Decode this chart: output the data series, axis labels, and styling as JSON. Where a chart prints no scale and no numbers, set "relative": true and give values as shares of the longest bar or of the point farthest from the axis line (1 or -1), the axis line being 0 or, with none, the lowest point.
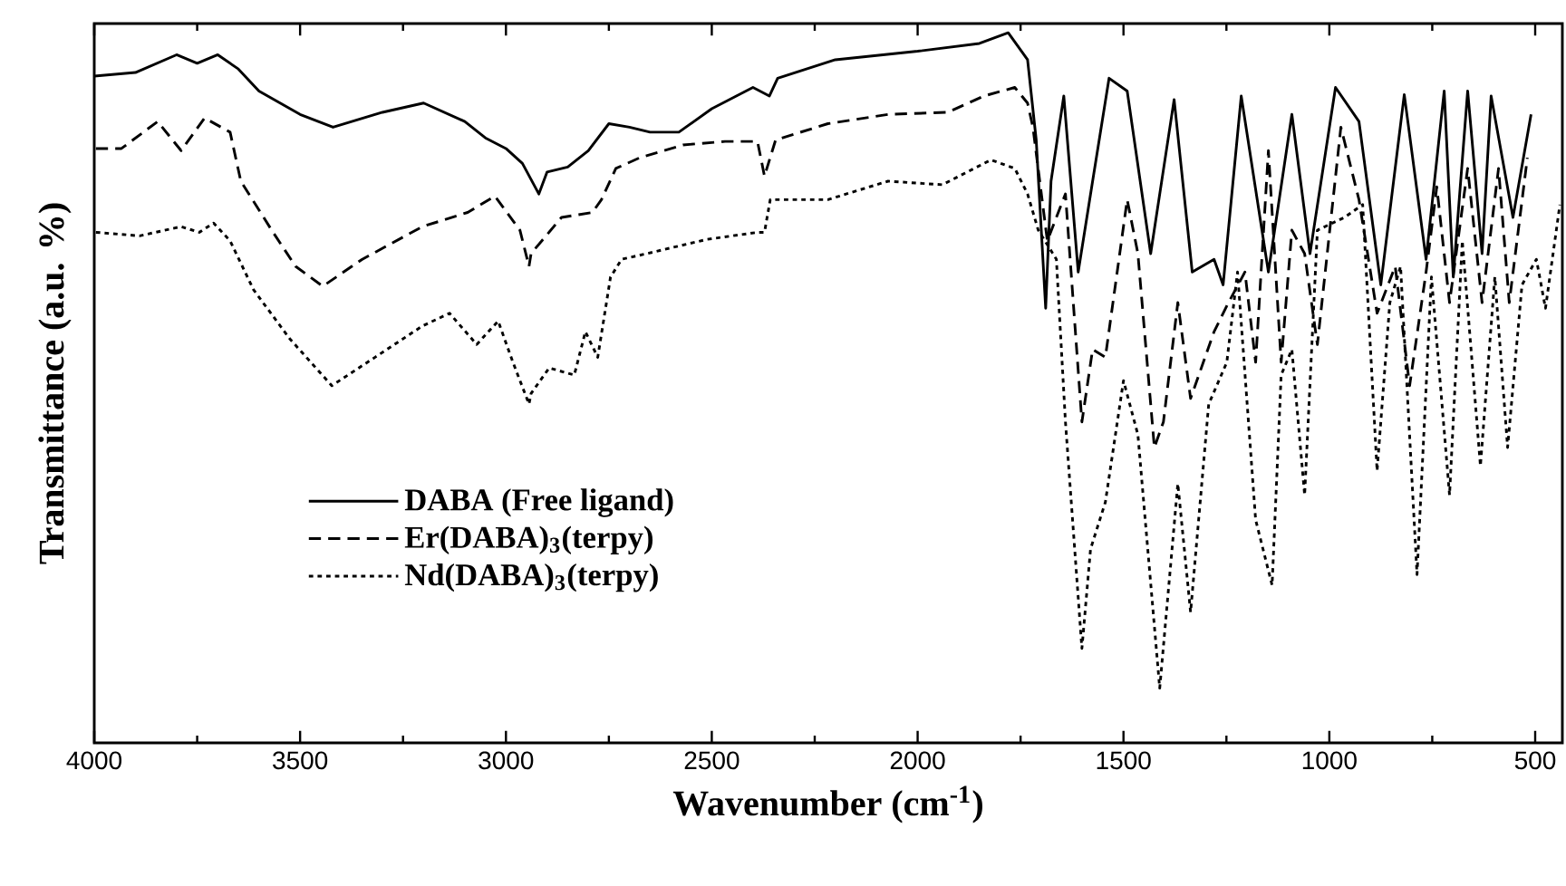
{
  "chart_data": {
    "type": "line",
    "relative": true,
    "xlabel": "Wavenumber (cm$^{-1}$)",
    "ylabel": "Transmittance (a.u. %)",
    "tick_labels": "x",
    "legend": "bottom left",
    "xlim": [
      4000,
      434
    ],
    "xticks": [
      4000,
      {
        "value": 3750,
        "label": null
      },
      3500,
      {
        "value": 3250,
        "label": null
      },
      3000,
      {
        "value": 2750,
        "label": null
      },
      2500,
      {
        "value": 2250,
        "label": null
      },
      2000,
      {
        "value": 1750,
        "label": null
      },
      1500,
      {
        "value": 1250,
        "label": null
      },
      1000,
      {
        "value": 750,
        "label": null
      },
      500
    ],
    "series": [
      {
        "name": "DABA (Free ligand)",
        "color": "#000000",
        "line_style": "solid",
        "x": [
          4000,
          3900,
          3800,
          3750,
          3700,
          3650,
          3600,
          3500,
          3420,
          3300,
          3200,
          3100,
          3050,
          3000,
          2960,
          2920,
          2900,
          2850,
          2800,
          2750,
          2700,
          2650,
          2580,
          2500,
          2400,
          2360,
          2340,
          2200,
          2000,
          1850,
          1780,
          1733,
          1712,
          1689,
          1676,
          1645,
          1610,
          1575,
          1535,
          1491,
          1434,
          1377,
          1333,
          1280,
          1258,
          1214,
          1148,
          1091,
          1047,
          985,
          928,
          875,
          818,
          765,
          721,
          699,
          664,
          629,
          607,
          554,
          510
        ],
        "values": [
          0.939,
          0.944,
          0.969,
          0.957,
          0.969,
          0.949,
          0.918,
          0.885,
          0.867,
          0.888,
          0.901,
          0.875,
          0.852,
          0.837,
          0.816,
          0.773,
          0.804,
          0.811,
          0.834,
          0.872,
          0.867,
          0.86,
          0.86,
          0.893,
          0.923,
          0.911,
          0.936,
          0.962,
          0.974,
          0.985,
          1.0,
          0.962,
          0.849,
          0.612,
          0.791,
          0.911,
          0.663,
          0.791,
          0.936,
          0.918,
          0.689,
          0.906,
          0.663,
          0.681,
          0.645,
          0.911,
          0.663,
          0.885,
          0.689,
          0.923,
          0.875,
          0.645,
          0.913,
          0.681,
          0.918,
          0.656,
          0.918,
          0.689,
          0.911,
          0.74,
          0.885
        ]
      },
      {
        "name": "Er(DABA)$_{3}$(terpy)",
        "color": "#000000",
        "line_style": "dashed",
        "x": [
          3996,
          3934,
          3846,
          3789,
          3732,
          3670,
          3644,
          3569,
          3511,
          3445,
          3349,
          3203,
          3093,
          3027,
          2966,
          2944,
          2939,
          2865,
          2790,
          2768,
          2733,
          2675,
          2570,
          2468,
          2389,
          2372,
          2345,
          2218,
          2072,
          1927,
          1839,
          1764,
          1733,
          1720,
          1685,
          1641,
          1601,
          1575,
          1544,
          1491,
          1465,
          1425,
          1403,
          1368,
          1337,
          1280,
          1245,
          1205,
          1179,
          1148,
          1117,
          1091,
          1060,
          1029,
          972,
          928,
          884,
          840,
          805,
          765,
          739,
          708,
          664,
          629,
          589,
          563,
          519
        ],
        "values": [
          0.837,
          0.837,
          0.875,
          0.834,
          0.88,
          0.86,
          0.791,
          0.722,
          0.671,
          0.643,
          0.681,
          0.727,
          0.747,
          0.77,
          0.722,
          0.671,
          0.689,
          0.74,
          0.747,
          0.765,
          0.809,
          0.824,
          0.842,
          0.847,
          0.847,
          0.798,
          0.849,
          0.872,
          0.885,
          0.888,
          0.911,
          0.923,
          0.901,
          0.867,
          0.707,
          0.773,
          0.452,
          0.554,
          0.543,
          0.765,
          0.689,
          0.416,
          0.452,
          0.62,
          0.485,
          0.579,
          0.62,
          0.663,
          0.536,
          0.834,
          0.536,
          0.722,
          0.689,
          0.561,
          0.867,
          0.765,
          0.605,
          0.671,
          0.503,
          0.663,
          0.783,
          0.62,
          0.809,
          0.62,
          0.809,
          0.62,
          0.824
        ]
      },
      {
        "name": "Nd(DABA)$_{3}$(terpy)",
        "color": "#000000",
        "line_style": "dotted",
        "x": [
          3996,
          3890,
          3789,
          3745,
          3710,
          3670,
          3613,
          3525,
          3423,
          3318,
          3203,
          3137,
          3071,
          3019,
          2983,
          2944,
          2939,
          2895,
          2834,
          2807,
          2777,
          2746,
          2719,
          2658,
          2512,
          2389,
          2372,
          2358,
          2218,
          2072,
          1940,
          1822,
          1764,
          1733,
          1707,
          1663,
          1641,
          1601,
          1580,
          1544,
          1500,
          1465,
          1412,
          1368,
          1337,
          1293,
          1249,
          1223,
          1179,
          1139,
          1117,
          1091,
          1060,
          1029,
          963,
          919,
          884,
          853,
          827,
          787,
          752,
          708,
          677,
          633,
          598,
          567,
          532,
          497,
          475,
          440
        ],
        "values": [
          0.719,
          0.714,
          0.727,
          0.719,
          0.732,
          0.707,
          0.638,
          0.569,
          0.503,
          0.543,
          0.587,
          0.605,
          0.561,
          0.594,
          0.536,
          0.477,
          0.492,
          0.528,
          0.518,
          0.579,
          0.543,
          0.656,
          0.681,
          0.689,
          0.709,
          0.719,
          0.719,
          0.765,
          0.765,
          0.791,
          0.786,
          0.821,
          0.809,
          0.773,
          0.722,
          0.681,
          0.452,
          0.133,
          0.273,
          0.339,
          0.51,
          0.434,
          0.077,
          0.365,
          0.184,
          0.477,
          0.536,
          0.663,
          0.314,
          0.222,
          0.518,
          0.554,
          0.349,
          0.722,
          0.74,
          0.758,
          0.383,
          0.62,
          0.671,
          0.237,
          0.656,
          0.349,
          0.707,
          0.39,
          0.656,
          0.416,
          0.645,
          0.681,
          0.612,
          0.758
        ]
      }
    ]
  }
}
